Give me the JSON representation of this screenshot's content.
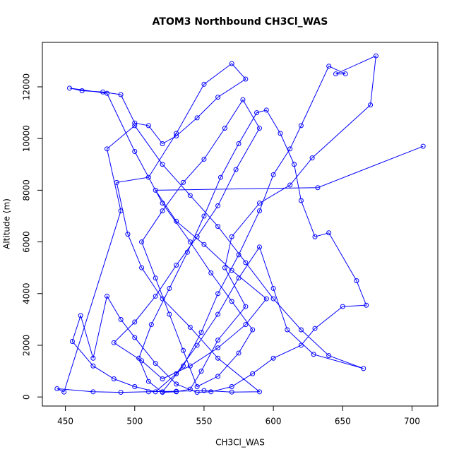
{
  "chart_data": {
    "type": "line",
    "points": true,
    "title": "ATOM3 Northbound CH3Cl_WAS",
    "x_label": "CH3Cl_WAS",
    "y_label": "Altitude (m)",
    "xlim": [
      433.4,
      718.6
    ],
    "ylim": [
      -351,
      13721
    ],
    "xticks": [
      450,
      500,
      550,
      600,
      650,
      700
    ],
    "yticks": [
      0,
      2000,
      4000,
      6000,
      8000,
      10000,
      12000
    ],
    "series": [
      {
        "color": "#0000ff",
        "x": [
          520,
          535,
          548,
          560,
          575,
          590,
          600,
          612,
          620,
          640,
          652,
          645,
          674,
          670,
          628,
          612,
          590,
          570,
          565,
          580,
          560,
          548,
          540,
          530,
          520,
          510,
          503,
          512,
          525,
          538,
          550,
          562,
          575,
          588,
          595,
          605,
          615,
          620,
          630,
          640,
          660,
          667,
          650,
          630,
          620,
          600,
          585,
          570,
          555,
          545,
          530,
          515,
          500,
          490,
          480,
          470,
          461,
          455,
          470,
          485,
          500,
          515,
          530,
          545,
          560,
          575,
          590,
          600,
          610,
          629,
          665,
          640,
          620,
          600,
          580,
          560,
          540,
          520,
          500,
          480,
          490,
          449,
          444,
          470,
          490,
          510,
          530,
          550,
          570,
          590,
          560,
          540,
          520,
          505,
          495,
          487,
          510,
          530,
          550,
          570,
          580,
          560,
          545,
          530,
          520,
          510,
          500,
          490,
          477,
          462,
          453,
          480,
          500,
          520,
          540,
          555,
          570,
          585,
          575,
          560,
          545,
          535,
          525,
          515,
          505,
          520,
          535,
          550,
          565,
          578,
          590,
          573,
          560,
          545,
          530,
          515,
          500,
          485,
          505,
          520,
          540,
          560,
          580,
          595,
          570,
          550,
          530,
          515,
          632,
          708
        ],
        "values": [
          200,
          1200,
          2500,
          4000,
          5500,
          7200,
          8600,
          9600,
          10500,
          12800,
          12500,
          12500,
          13200,
          11300,
          9250,
          8200,
          7500,
          6200,
          5000,
          3500,
          2200,
          1000,
          300,
          200,
          180,
          600,
          1500,
          2800,
          4200,
          5600,
          7000,
          8500,
          9800,
          11000,
          11100,
          10200,
          9000,
          7600,
          6200,
          6350,
          4500,
          3550,
          3500,
          2650,
          2000,
          1500,
          900,
          400,
          200,
          180,
          500,
          1300,
          2300,
          3000,
          3900,
          1500,
          3150,
          2150,
          1200,
          700,
          400,
          200,
          900,
          2000,
          3200,
          4600,
          5800,
          4200,
          2600,
          1650,
          1100,
          1600,
          2600,
          3800,
          5200,
          6600,
          7800,
          9000,
          10500,
          9600,
          7200,
          190,
          320,
          200,
          180,
          200,
          220,
          250,
          190,
          200,
          1500,
          2700,
          3800,
          5000,
          6300,
          8300,
          8500,
          10200,
          12100,
          12900,
          12300,
          11600,
          10800,
          10100,
          9800,
          10500,
          10600,
          11700,
          11800,
          11850,
          11950,
          11750,
          9500,
          7500,
          6000,
          4800,
          3700,
          2600,
          1700,
          800,
          400,
          1800,
          3200,
          4600,
          6000,
          7200,
          8300,
          9200,
          10400,
          11500,
          10400,
          8800,
          7400,
          6200,
          5100,
          3900,
          2900,
          2100,
          1400,
          700,
          1200,
          1900,
          2800,
          3800,
          4900,
          5900,
          6800,
          8000,
          8100,
          9700
        ]
      }
    ]
  }
}
